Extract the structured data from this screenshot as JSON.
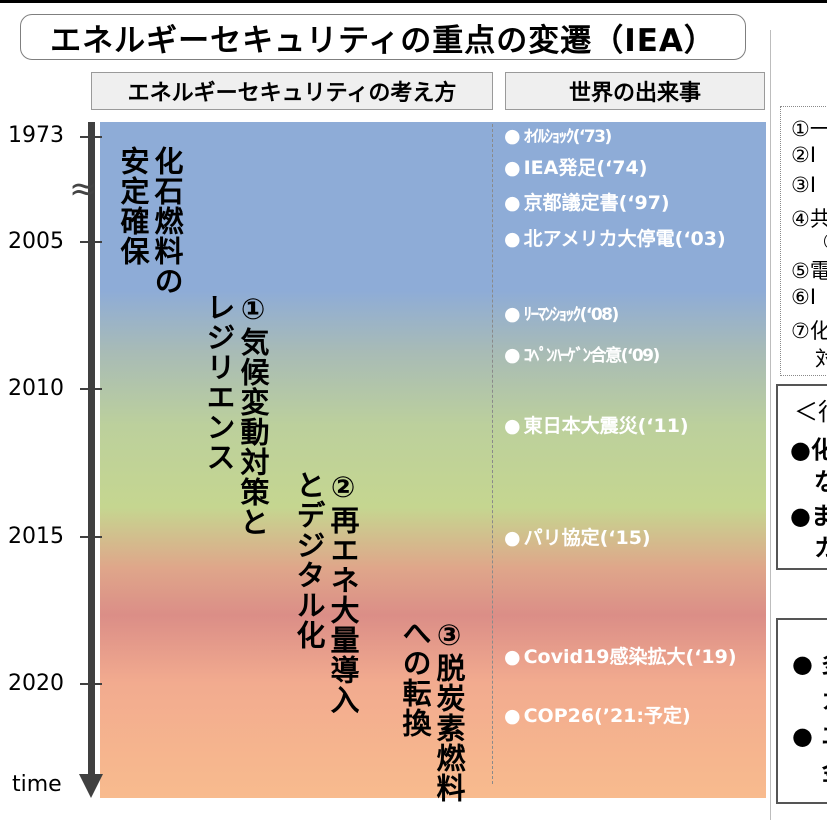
{
  "title": "エネルギーセキュリティの重点の変遷（IEA）",
  "headers": {
    "left": "エネルギーセキュリティの考え方",
    "right": "世界の出来事"
  },
  "axis": {
    "years": [
      "1973",
      "2005",
      "2010",
      "2015",
      "2020"
    ],
    "time_label": "time",
    "break_icon": "≈"
  },
  "phases": [
    {
      "text": "化石燃料の\n安定確保"
    },
    {
      "text": "①気候変動対策と\nレジリエンス"
    },
    {
      "text": "②再エネ大量導入\nとデジタル化"
    },
    {
      "text": "③脱炭素燃料\nへの転換"
    }
  ],
  "events": [
    {
      "label": "ｵｲﾙｼｮｯｸ(‘73)"
    },
    {
      "label": "IEA発足(‘74)"
    },
    {
      "label": "京都議定書(‘97)"
    },
    {
      "label": "北アメリカ大停電(‘03)"
    },
    {
      "label": "ﾘｰﾏﾝｼｮｯｸ(‘08)"
    },
    {
      "label": "ｺﾍﾟﾝﾊｰｹﾞﾝ合意(‘09)"
    },
    {
      "label": "東日本大震災(‘11)"
    },
    {
      "label": "パリ協定(‘15)"
    },
    {
      "label": "Covid19感染拡大(‘19)"
    },
    {
      "label": "COP26(’21:予定)"
    }
  ],
  "bullet": "●",
  "side_panels": {
    "list": [
      {
        "num": "①",
        "text": "一"
      },
      {
        "num": "②",
        "text": "I"
      },
      {
        "num": "③",
        "text": "I"
      },
      {
        "num": "④",
        "text": "共"
      },
      {
        "num": "",
        "text": "（"
      },
      {
        "num": "⑤",
        "text": "電"
      },
      {
        "num": "⑥",
        "text": "I"
      },
      {
        "num": "⑦",
        "text": "化"
      },
      {
        "num": "",
        "text": "対"
      }
    ],
    "box1": {
      "heading": "＜行",
      "line1": "●化",
      "line2": "な",
      "line3": "●ま",
      "line4": "カ"
    },
    "box2": {
      "line1": "● 多",
      "line2": "ガ",
      "line3": "● エ",
      "line4": "金"
    }
  },
  "colors": {
    "axis": "#404040",
    "band_top": "#8eacd7",
    "band_mid": "#c5d690",
    "band_red": "#db8e87",
    "band_bottom": "#f8bb8e",
    "event_text": "#ffffff"
  }
}
